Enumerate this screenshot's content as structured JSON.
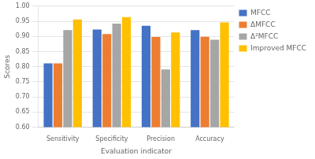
{
  "chart_data": {
    "type": "bar",
    "xlabel": "Evaluation indicator",
    "ylabel": "Scores",
    "categories": [
      "Sensitivity",
      "Specificity",
      "Precision",
      "Accuracy"
    ],
    "series": [
      {
        "name": "MFCC",
        "color": "#4472C4",
        "values": [
          0.811,
          0.923,
          0.935,
          0.921
        ]
      },
      {
        "name": "ΔMFCC",
        "color": "#ED7D31",
        "values": [
          0.811,
          0.908,
          0.898,
          0.899
        ]
      },
      {
        "name": "Δ²MFCC",
        "color": "#A6A6A6",
        "values": [
          0.921,
          0.942,
          0.791,
          0.889
        ]
      },
      {
        "name": "Improved MFCC",
        "color": "#FFC000",
        "values": [
          0.956,
          0.964,
          0.913,
          0.946
        ]
      }
    ],
    "ylim": [
      0.6,
      1.0
    ],
    "yticks": [
      {
        "value": 0.6,
        "label": "0.60"
      },
      0.65,
      {
        "value": 0.7,
        "label": "0.70"
      },
      0.75,
      {
        "value": 0.8,
        "label": "0.80"
      },
      0.85,
      {
        "value": 0.9,
        "label": "0.90"
      },
      0.95,
      {
        "value": 1.0,
        "label": "1.00"
      }
    ],
    "grid": true,
    "legend": "right"
  }
}
